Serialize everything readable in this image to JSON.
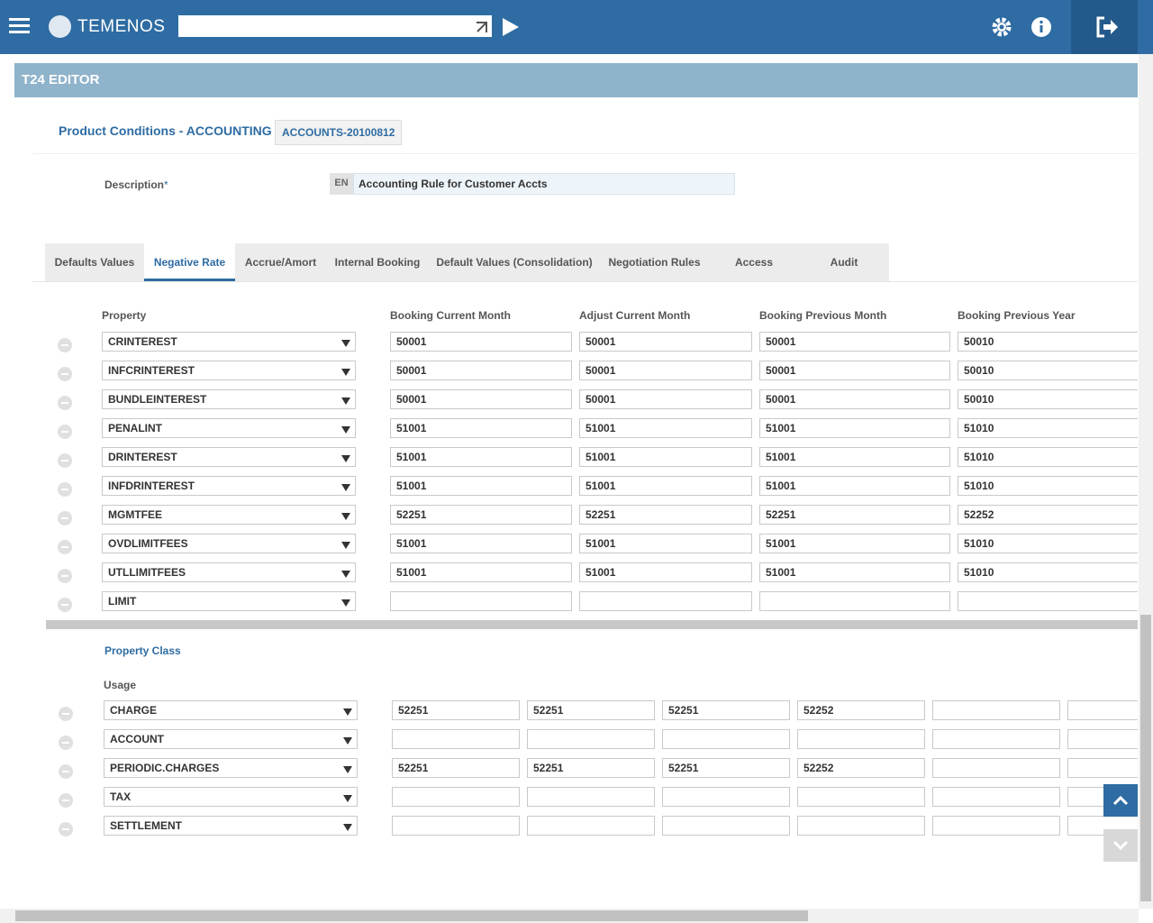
{
  "header": {
    "brand": "TEMENOS"
  },
  "editor_title": "T24 EDITOR",
  "form": {
    "title": "Product Conditions - ACCOUNTING",
    "record_id": "ACCOUNTS-20100812",
    "description": {
      "label": "Description",
      "required": "*",
      "lang": "EN",
      "value": "Accounting Rule for Customer Accts"
    }
  },
  "tabs": {
    "items": [
      "Defaults Values",
      "Negative Rate",
      "Accrue/Amort",
      "Internal Booking",
      "Default Values (Consolidation)",
      "Negotiation Rules",
      "Access",
      "Audit"
    ],
    "active": 1
  },
  "property_table": {
    "columns": [
      "Property",
      "Booking Current Month",
      "Adjust Current Month",
      "Booking Previous Month",
      "Booking Previous Year"
    ],
    "rows": [
      {
        "property": "CRINTEREST",
        "accounts": [
          "50001",
          "50001",
          "50001",
          "50010"
        ]
      },
      {
        "property": "INFCRINTEREST",
        "accounts": [
          "50001",
          "50001",
          "50001",
          "50010"
        ]
      },
      {
        "property": "BUNDLEINTEREST",
        "accounts": [
          "50001",
          "50001",
          "50001",
          "50010"
        ]
      },
      {
        "property": "PENALINT",
        "accounts": [
          "51001",
          "51001",
          "51001",
          "51010"
        ]
      },
      {
        "property": "DRINTEREST",
        "accounts": [
          "51001",
          "51001",
          "51001",
          "51010"
        ]
      },
      {
        "property": "INFDRINTEREST",
        "accounts": [
          "51001",
          "51001",
          "51001",
          "51010"
        ]
      },
      {
        "property": "MGMTFEE",
        "accounts": [
          "52251",
          "52251",
          "52251",
          "52252"
        ]
      },
      {
        "property": "OVDLIMITFEES",
        "accounts": [
          "51001",
          "51001",
          "51001",
          "51010"
        ]
      },
      {
        "property": "UTLLIMITFEES",
        "accounts": [
          "51001",
          "51001",
          "51001",
          "51010"
        ]
      },
      {
        "property": "LIMIT",
        "accounts": []
      }
    ]
  },
  "property_class": {
    "title": "Property Class",
    "usage_label": "Usage",
    "rows": [
      {
        "usage": "CHARGE",
        "accounts": [
          "52251",
          "52251",
          "52251",
          "52252"
        ]
      },
      {
        "usage": "ACCOUNT",
        "accounts": []
      },
      {
        "usage": "PERIODIC.CHARGES",
        "accounts": [
          "52251",
          "52251",
          "52251",
          "52252"
        ]
      },
      {
        "usage": "TAX",
        "accounts": []
      },
      {
        "usage": "SETTLEMENT",
        "accounts": []
      }
    ]
  }
}
